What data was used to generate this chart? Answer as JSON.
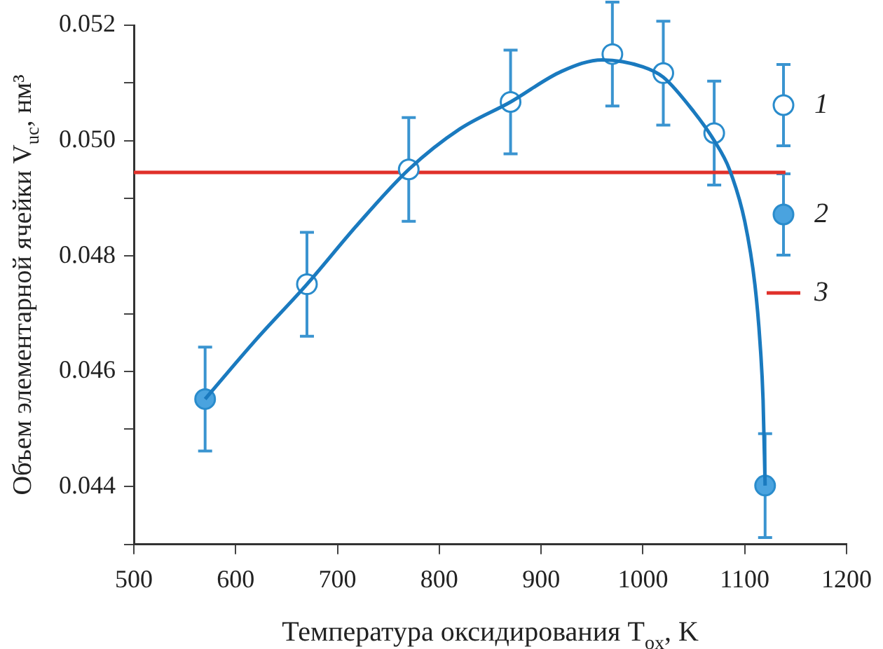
{
  "chart_data": {
    "type": "scatter",
    "xlabel": "Температура оксидирования T$_{ox}$, K",
    "ylabel": "Объем элементарной ячейки V$_{uc}$, нм³",
    "xlim": [
      500,
      1200
    ],
    "xticks": [
      500,
      600,
      700,
      800,
      900,
      1000,
      1100,
      1200
    ],
    "ylim": [
      0.043,
      0.052
    ],
    "yticks": [
      {
        "value": 0.043,
        "label": null
      },
      0.044,
      {
        "value": 0.045,
        "label": null
      },
      0.046,
      {
        "value": 0.047,
        "label": null
      },
      0.048,
      {
        "value": 0.049,
        "label": null
      },
      {
        "value": 0.05,
        "label": "0.050"
      },
      {
        "value": 0.051,
        "label": null
      },
      0.052
    ],
    "grid": false,
    "legend": "top right",
    "series": [
      {
        "type": "line",
        "color": "#1a7abf",
        "marker": "none",
        "x": [
          570,
          620,
          670,
          720,
          770,
          820,
          870,
          920,
          960,
          1000,
          1020,
          1050,
          1070,
          1085,
          1100,
          1110,
          1115,
          1118,
          1120
        ],
        "values": [
          0.04552,
          0.04655,
          0.04751,
          0.04855,
          0.0495,
          0.0502,
          0.05067,
          0.0512,
          0.0514,
          0.05128,
          0.0511,
          0.0505,
          0.05,
          0.0495,
          0.0486,
          0.0475,
          0.0465,
          0.0455,
          0.04402
        ]
      },
      {
        "name": "1",
        "color": "#ffffff",
        "marker": "circle",
        "x": [
          670,
          770,
          870,
          970,
          1020,
          1070
        ],
        "values": [
          0.04751,
          0.0495,
          0.05067,
          0.0515,
          0.05117,
          0.05013
        ],
        "errors": [
          0.0009,
          0.0009,
          0.0009,
          0.0009,
          0.0009,
          0.0009
        ]
      },
      {
        "name": "2",
        "color": "#4aa3df",
        "marker": "circle",
        "x": [
          570,
          1120
        ],
        "values": [
          0.04552,
          0.04402
        ],
        "errors": [
          0.0009,
          0.0009
        ]
      },
      {
        "name": "3",
        "type": "line",
        "color": "#e0302a",
        "marker": "none",
        "x": [
          500,
          1140
        ],
        "values": [
          0.04945,
          0.04945
        ]
      }
    ]
  }
}
